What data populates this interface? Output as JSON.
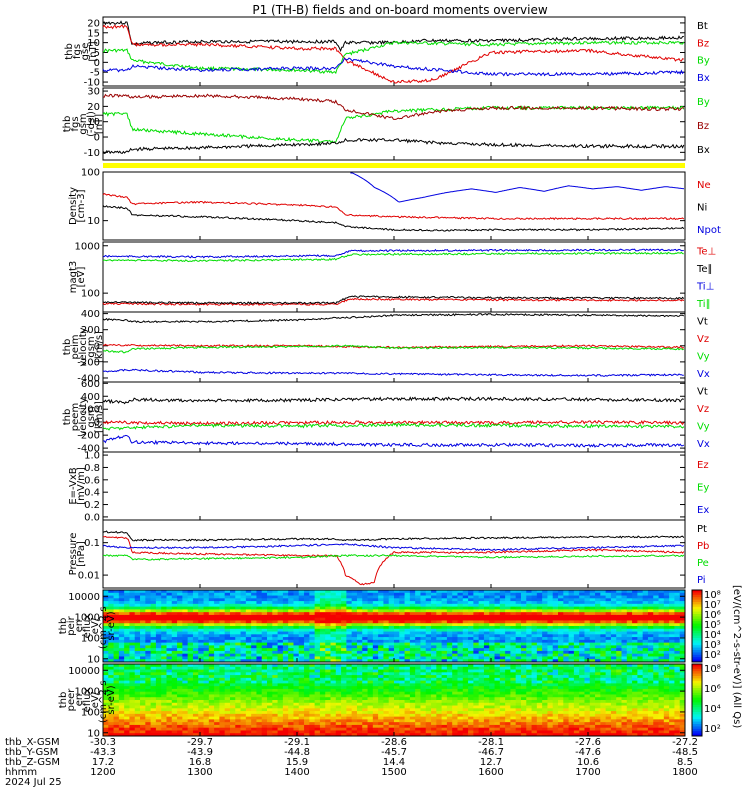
{
  "title": "P1 (TH-B) fields and on-board moments overview",
  "footer": {
    "rows": [
      {
        "label": "thb_X-GSM",
        "values": [
          "-30.3",
          "-29.7",
          "-29.1",
          "-28.6",
          "-28.1",
          "-27.6",
          "-27.2"
        ]
      },
      {
        "label": "thb_Y-GSM",
        "values": [
          "-43.3",
          "-43.9",
          "-44.8",
          "-45.7",
          "-46.7",
          "-47.6",
          "-48.5"
        ]
      },
      {
        "label": "thb_Z-GSM",
        "values": [
          "17.2",
          "16.8",
          "15.9",
          "14.4",
          "12.7",
          "10.6",
          "8.5"
        ]
      },
      {
        "label": "hhmm",
        "values": [
          "1200",
          "1300",
          "1400",
          "1500",
          "1600",
          "1700",
          "1800"
        ]
      }
    ],
    "date": "2024 Jul 25"
  },
  "colorbar": {
    "label": "[eV/(cm^2-s-str-eV)] (All Qs)",
    "ticks": [
      "10⁸",
      "10⁷",
      "10⁶",
      "10⁵",
      "10⁴",
      "10³",
      "10²"
    ],
    "ticks2": [
      "10⁸",
      "10⁶",
      "10⁴",
      "10²"
    ]
  },
  "colors": {
    "black": "#000000",
    "red": "#e00000",
    "green": "#00dd00",
    "blue": "#0000e0",
    "darkred": "#990000",
    "yellow": "#ffff00"
  },
  "chart_data": [
    {
      "type": "line",
      "id": "fgs-gse",
      "ylabel": [
        "thb",
        "fgs",
        "gse",
        "[nT]"
      ],
      "ylim": [
        -12,
        23
      ],
      "yticks": [
        20,
        15,
        10,
        5,
        0,
        -5,
        -10
      ],
      "xlim": [
        1200,
        1800
      ],
      "series": [
        {
          "name": "Bt",
          "color": "black",
          "x": [
            1200,
            1225,
            1230,
            1250,
            1300,
            1400,
            1440,
            1445,
            1450,
            1500,
            1530,
            1600,
            1700,
            1800
          ],
          "y": [
            20,
            20,
            9,
            10,
            10.5,
            10.5,
            10.5,
            6,
            10,
            10,
            11,
            11,
            12,
            12.5
          ]
        },
        {
          "name": "Bz",
          "color": "red",
          "x": [
            1200,
            1225,
            1230,
            1300,
            1400,
            1440,
            1450,
            1500,
            1540,
            1600,
            1700,
            1800
          ],
          "y": [
            18,
            18,
            9,
            9,
            7,
            7,
            1,
            -10,
            -9,
            5,
            6,
            1
          ]
        },
        {
          "name": "By",
          "color": "green",
          "x": [
            1200,
            1225,
            1230,
            1300,
            1400,
            1440,
            1450,
            1500,
            1600,
            1700,
            1800
          ],
          "y": [
            6,
            6,
            1,
            -3,
            -4,
            -5,
            4,
            10,
            9,
            10,
            10
          ]
        },
        {
          "name": "Bx",
          "color": "blue",
          "x": [
            1200,
            1225,
            1230,
            1300,
            1400,
            1440,
            1450,
            1500,
            1600,
            1700,
            1800
          ],
          "y": [
            -4,
            -4,
            -2,
            -4,
            -3,
            -3,
            2,
            -2,
            -6,
            -6,
            -5
          ]
        }
      ]
    },
    {
      "type": "line",
      "id": "fgs-gsm",
      "ylabel": [
        "thb",
        "fgs",
        "gsm",
        "(-dsl)",
        "[nT]"
      ],
      "ylim": [
        -15,
        32
      ],
      "yticks": [
        30,
        20,
        10,
        0,
        -10
      ],
      "xlim": [
        1200,
        1800
      ],
      "series": [
        {
          "name": "By",
          "color": "green",
          "x": [
            1200,
            1225,
            1230,
            1300,
            1400,
            1440,
            1450,
            1500,
            1550,
            1600,
            1700,
            1800
          ],
          "y": [
            15,
            15,
            5,
            2,
            -2,
            -3,
            12,
            17,
            18,
            19,
            19,
            19
          ]
        },
        {
          "name": "Bz",
          "color": "darkred",
          "x": [
            1200,
            1225,
            1230,
            1300,
            1400,
            1440,
            1450,
            1500,
            1550,
            1600,
            1700,
            1800
          ],
          "y": [
            27,
            27,
            26,
            27,
            25,
            23,
            18,
            12,
            17,
            19,
            19,
            18
          ]
        },
        {
          "name": "Bx",
          "color": "black",
          "x": [
            1200,
            1225,
            1230,
            1300,
            1400,
            1440,
            1450,
            1500,
            1550,
            1600,
            1700,
            1800
          ],
          "y": [
            -10,
            -10,
            -8,
            -7,
            -5,
            -4,
            -2,
            -2,
            -4,
            -5,
            -6,
            -6
          ]
        }
      ]
    },
    {
      "type": "line",
      "id": "density",
      "yscale": "log",
      "ylabel": [
        "Density",
        "[cm-3]"
      ],
      "ylim": [
        4,
        100
      ],
      "yticks": [
        100,
        10
      ],
      "xlim": [
        1200,
        1800
      ],
      "series": [
        {
          "name": "Ne",
          "color": "red",
          "x": [
            1200,
            1225,
            1230,
            1300,
            1400,
            1440,
            1450,
            1500,
            1550,
            1600,
            1700,
            1800
          ],
          "y": [
            35,
            30,
            22,
            24,
            21,
            19,
            13,
            12,
            11.5,
            11,
            11,
            11
          ]
        },
        {
          "name": "Ni",
          "color": "black",
          "x": [
            1200,
            1225,
            1230,
            1300,
            1400,
            1440,
            1450,
            1500,
            1550,
            1600,
            1700,
            1800
          ],
          "y": [
            20,
            18,
            13,
            12,
            10,
            9,
            7.5,
            6.5,
            6.3,
            6.5,
            6.5,
            7
          ]
        },
        {
          "name": "Npot",
          "color": "blue",
          "x": [
            1455,
            1480,
            1505,
            1530,
            1555,
            1580,
            1605,
            1630,
            1655,
            1680,
            1705,
            1730,
            1755,
            1780,
            1800
          ],
          "y": [
            100,
            48,
            24,
            30,
            38,
            45,
            38,
            48,
            40,
            52,
            45,
            50,
            42,
            50,
            45
          ]
        }
      ]
    },
    {
      "type": "line",
      "id": "temperature",
      "yscale": "log",
      "ylabel": [
        "magt3",
        "[eV]"
      ],
      "ylim": [
        40,
        1200
      ],
      "yticks": [
        1000,
        100
      ],
      "xlim": [
        1200,
        1800
      ],
      "series": [
        {
          "name": "Te⊥",
          "color": "red",
          "x": [
            1200,
            1300,
            1440,
            1455,
            1600,
            1800
          ],
          "y": [
            60,
            58,
            58,
            75,
            72,
            70
          ]
        },
        {
          "name": "Te∥",
          "color": "black",
          "x": [
            1200,
            1300,
            1440,
            1455,
            1600,
            1800
          ],
          "y": [
            65,
            62,
            62,
            85,
            80,
            78
          ]
        },
        {
          "name": "Ti⊥",
          "color": "blue",
          "x": [
            1200,
            1300,
            1440,
            1455,
            1600,
            1800
          ],
          "y": [
            600,
            580,
            620,
            780,
            800,
            820
          ]
        },
        {
          "name": "Ti∥",
          "color": "green",
          "x": [
            1200,
            1300,
            1440,
            1455,
            1600,
            1800
          ],
          "y": [
            500,
            480,
            520,
            650,
            680,
            700
          ]
        }
      ]
    },
    {
      "type": "line",
      "id": "ion-velocity",
      "ylabel": [
        "thb",
        "peim",
        "velocity",
        "gsm",
        "[km/s]"
      ],
      "ylim": [
        -450,
        420
      ],
      "yticks": [
        400,
        200,
        0,
        -200,
        -400
      ],
      "xlim": [
        1200,
        1800
      ],
      "series": [
        {
          "name": "Vt",
          "color": "black",
          "x": [
            1200,
            1225,
            1230,
            1300,
            1400,
            1450,
            1500,
            1600,
            1700,
            1800
          ],
          "y": [
            330,
            320,
            300,
            300,
            320,
            350,
            380,
            390,
            380,
            370
          ]
        },
        {
          "name": "Vz",
          "color": "red",
          "x": [
            1200,
            1300,
            1400,
            1450,
            1500,
            1600,
            1700,
            1800
          ],
          "y": [
            10,
            0,
            0,
            -10,
            -20,
            -10,
            0,
            -20
          ]
        },
        {
          "name": "Vy",
          "color": "green",
          "x": [
            1200,
            1225,
            1230,
            1300,
            1400,
            1450,
            1500,
            1600,
            1700,
            1800
          ],
          "y": [
            -60,
            -80,
            -40,
            -20,
            -10,
            0,
            -30,
            -20,
            -30,
            -40
          ]
        },
        {
          "name": "Vx",
          "color": "blue",
          "x": [
            1200,
            1225,
            1230,
            1300,
            1400,
            1450,
            1500,
            1600,
            1700,
            1800
          ],
          "y": [
            -320,
            -300,
            -300,
            -330,
            -340,
            -340,
            -350,
            -360,
            -370,
            -360
          ]
        }
      ]
    },
    {
      "type": "line",
      "id": "electron-velocity",
      "ylabel": [
        "thb",
        "peem",
        "velocity",
        "gsm",
        "[km/s]"
      ],
      "ylim": [
        -460,
        620
      ],
      "yticks": [
        600,
        400,
        200,
        0,
        -200,
        -400
      ],
      "xlim": [
        1200,
        1800
      ],
      "series": [
        {
          "name": "Vt",
          "color": "black",
          "x": [
            1200,
            1225,
            1230,
            1300,
            1400,
            1500,
            1600,
            1700,
            1800
          ],
          "y": [
            330,
            300,
            350,
            330,
            340,
            360,
            360,
            350,
            340
          ]
        },
        {
          "name": "Vz",
          "color": "red",
          "x": [
            1200,
            1300,
            1400,
            1500,
            1600,
            1700,
            1800
          ],
          "y": [
            0,
            -20,
            -10,
            0,
            -10,
            0,
            -10
          ]
        },
        {
          "name": "Vy",
          "color": "green",
          "x": [
            1200,
            1300,
            1400,
            1500,
            1600,
            1700,
            1800
          ],
          "y": [
            -100,
            -50,
            -60,
            -40,
            -50,
            -60,
            -70
          ]
        },
        {
          "name": "Vx",
          "color": "blue",
          "x": [
            1200,
            1225,
            1230,
            1300,
            1400,
            1500,
            1600,
            1700,
            1800
          ],
          "y": [
            -300,
            -200,
            -310,
            -320,
            -330,
            -350,
            -350,
            -360,
            -350
          ]
        }
      ]
    },
    {
      "type": "line",
      "id": "efield",
      "ylabel": [
        "E=-VxB",
        "[mV/m]"
      ],
      "ylim": [
        -0.05,
        1.05
      ],
      "yticks": [
        1.0,
        0.8,
        0.6,
        0.4,
        0.2,
        0.0
      ],
      "xlim": [
        1200,
        1800
      ],
      "series": [
        {
          "name": "Ez",
          "color": "red",
          "x": [],
          "y": []
        },
        {
          "name": "Ey",
          "color": "green",
          "x": [],
          "y": []
        },
        {
          "name": "Ex",
          "color": "blue",
          "x": [],
          "y": []
        }
      ]
    },
    {
      "type": "line",
      "id": "pressure",
      "yscale": "log",
      "ylabel": [
        "Pressure",
        "[nPa]"
      ],
      "ylim": [
        0.004,
        0.5
      ],
      "yticks": [
        0.1,
        0.01
      ],
      "xlim": [
        1200,
        1800
      ],
      "series": [
        {
          "name": "Pt",
          "color": "black",
          "x": [
            1200,
            1225,
            1230,
            1300,
            1400,
            1440,
            1450,
            1500,
            1600,
            1700,
            1800
          ],
          "y": [
            0.22,
            0.2,
            0.12,
            0.12,
            0.13,
            0.13,
            0.12,
            0.13,
            0.14,
            0.15,
            0.15
          ]
        },
        {
          "name": "Pb",
          "color": "red",
          "x": [
            1200,
            1225,
            1230,
            1300,
            1400,
            1440,
            1450,
            1465,
            1480,
            1500,
            1600,
            1700,
            1800
          ],
          "y": [
            0.15,
            0.14,
            0.05,
            0.045,
            0.04,
            0.04,
            0.01,
            0.005,
            0.006,
            0.05,
            0.05,
            0.06,
            0.05
          ]
        },
        {
          "name": "Pe",
          "color": "green",
          "x": [
            1200,
            1225,
            1230,
            1300,
            1400,
            1450,
            1500,
            1600,
            1700,
            1800
          ],
          "y": [
            0.04,
            0.04,
            0.03,
            0.032,
            0.035,
            0.04,
            0.04,
            0.035,
            0.038,
            0.04
          ]
        },
        {
          "name": "Pi",
          "color": "blue",
          "x": [
            1200,
            1225,
            1230,
            1300,
            1400,
            1450,
            1500,
            1600,
            1700,
            1800
          ],
          "y": [
            0.08,
            0.07,
            0.07,
            0.07,
            0.08,
            0.09,
            0.07,
            0.06,
            0.07,
            0.08
          ]
        }
      ]
    },
    {
      "type": "heatmap",
      "id": "ion-spectrogram",
      "yscale": "log",
      "ylabel": [
        "thb",
        "peir",
        "en",
        "eflux",
        "eV/",
        "(cm^2-s-",
        "sr-eV)"
      ],
      "ylim": [
        7,
        20000
      ],
      "yticks": [
        10000,
        1000,
        100,
        10
      ],
      "xlim": [
        1200,
        1800
      ]
    },
    {
      "type": "heatmap",
      "id": "electron-spectrogram",
      "yscale": "log",
      "ylabel": [
        "thb",
        "peer",
        "en",
        "eflux",
        "eV/",
        "(cm^2-s-",
        "sr-eV)"
      ],
      "ylim": [
        7,
        20000
      ],
      "yticks": [
        10000,
        1000,
        100,
        10
      ],
      "xlim": [
        1200,
        1800
      ]
    }
  ]
}
